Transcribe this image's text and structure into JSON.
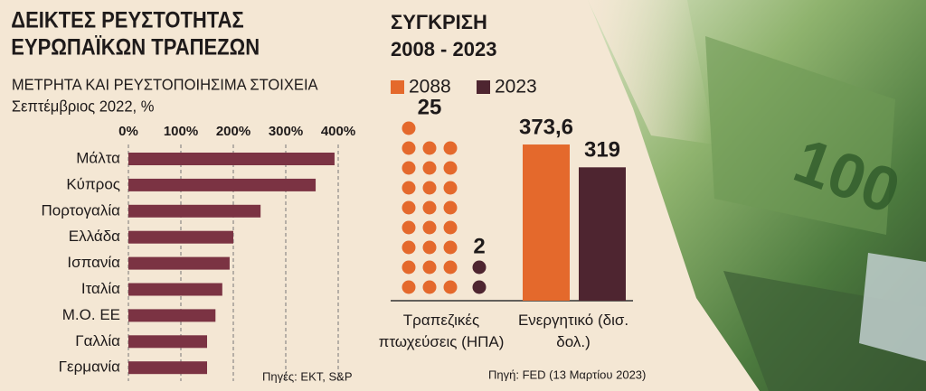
{
  "chart_data": [
    {
      "type": "hbar",
      "title": [
        "ΔΕΙΚΤΕΣ ΡΕΥΣΤΟΤΗΤΑΣ",
        "ΕΥΡΩΠΑΪΚΩΝ ΤΡΑΠΕΖΩΝ"
      ],
      "subtitle": [
        "ΜΕΤΡΗΤΑ ΚΑΙ ΡΕΥΣΤΟΠΟΙΗΣΙΜΑ ΣΤΟΙΧΕΙΑ",
        "Σεπτέμβριος 2022, %"
      ],
      "categories": [
        "Μάλτα",
        "Κύπρος",
        "Πορτογαλία",
        "Ελλάδα",
        "Ισπανία",
        "Ιταλία",
        "Μ.Ο. ΕΕ",
        "Γαλλία",
        "Γερμανία"
      ],
      "values": [
        393,
        357,
        252,
        200,
        193,
        179,
        166,
        150,
        150
      ],
      "color": "#7b3343",
      "xlim": [
        0,
        400
      ],
      "xticks": [
        {
          "value": 0,
          "label": "0%"
        },
        {
          "value": 100,
          "label": "100%"
        },
        {
          "value": 200,
          "label": "200%"
        },
        {
          "value": 300,
          "label": "300%"
        },
        {
          "value": 400,
          "label": "400%"
        }
      ],
      "grid": true,
      "source": "Πηγές: ΕΚΤ, S&P"
    },
    {
      "type": "dots",
      "title": [
        "ΣΥΓΚΡΙΣΗ",
        "2008 - 2023"
      ],
      "categories": [
        "Τραπεζικές πτωχεύσεις (ΗΠΑ)"
      ],
      "series": [
        {
          "color": "#e4692c",
          "values": [
            25
          ]
        },
        {
          "color": "#4e2530",
          "values": [
            2
          ]
        }
      ]
    },
    {
      "type": "bar",
      "categories": [
        "Ενεργητικό (δισ. δολ.)"
      ],
      "series": [
        {
          "name": "2088",
          "color": "#e4692c",
          "values": [
            373.6
          ],
          "value_labels": [
            "373,6"
          ]
        },
        {
          "name": "2023",
          "color": "#4e2530",
          "values": [
            319
          ],
          "value_labels": [
            "319"
          ]
        }
      ],
      "source": "Πηγή: FED (13 Μαρτίου 2023)"
    }
  ]
}
